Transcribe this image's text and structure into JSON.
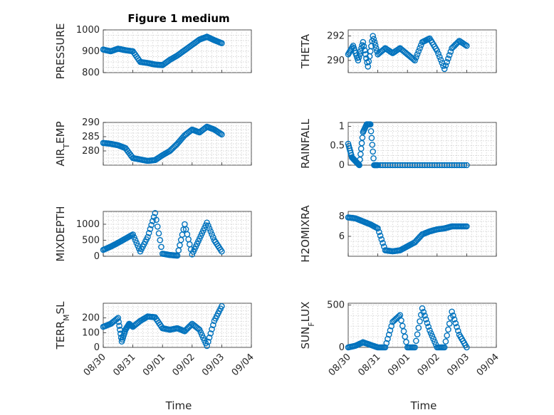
{
  "figure": {
    "title": "Figure 1 medium",
    "xlabel": "Time",
    "x_tick_labels": [
      "08/30",
      "08/31",
      "09/01",
      "09/02",
      "09/03",
      "09/04"
    ],
    "marker_color": "#0072bd"
  },
  "chart_data": [
    {
      "type": "scatter",
      "ylabel": "PRESSURE",
      "ylim": [
        800,
        1000
      ],
      "yticks": [
        800,
        900,
        1000
      ],
      "xlim": [
        "2021-08-30",
        "2021-09-04"
      ],
      "grid": true,
      "x": [
        "08/30 00:00",
        "08/30 06:00",
        "08/30 12:00",
        "08/30 18:00",
        "08/31 00:00",
        "08/31 06:00",
        "08/31 12:00",
        "08/31 18:00",
        "09/01 00:00",
        "09/01 06:00",
        "09/01 12:00",
        "09/01 18:00",
        "09/02 00:00",
        "09/02 06:00",
        "09/02 12:00",
        "09/02 18:00",
        "09/03 00:00"
      ],
      "y": [
        908,
        900,
        912,
        905,
        900,
        850,
        845,
        838,
        835,
        860,
        880,
        905,
        930,
        955,
        968,
        952,
        938
      ]
    },
    {
      "type": "scatter",
      "ylabel": "THETA",
      "ylim": [
        289,
        292.5
      ],
      "yticks": [
        290,
        292
      ],
      "xlim": [
        "2021-08-30",
        "2021-09-04"
      ],
      "grid": true,
      "x": [
        "08/30 00:00",
        "08/30 04:00",
        "08/30 08:00",
        "08/30 12:00",
        "08/30 16:00",
        "08/30 20:00",
        "08/31 00:00",
        "08/31 06:00",
        "08/31 12:00",
        "08/31 18:00",
        "09/01 00:00",
        "09/01 06:00",
        "09/01 12:00",
        "09/01 18:00",
        "09/02 00:00",
        "09/02 06:00",
        "09/02 12:00",
        "09/02 18:00",
        "09/03 00:00"
      ],
      "y": [
        290.5,
        291.2,
        290.0,
        291.5,
        289.5,
        292.0,
        290.5,
        291.0,
        290.6,
        291.0,
        290.5,
        290.0,
        291.5,
        291.8,
        290.8,
        289.3,
        291.0,
        291.6,
        291.2
      ]
    },
    {
      "type": "scatter",
      "ylabel": "AIR_TEMP",
      "ylim": [
        275,
        290
      ],
      "yticks": [
        280,
        285,
        290
      ],
      "xlim": [
        "2021-08-30",
        "2021-09-04"
      ],
      "grid": true,
      "x": [
        "08/30 00:00",
        "08/30 06:00",
        "08/30 12:00",
        "08/30 18:00",
        "08/31 00:00",
        "08/31 06:00",
        "08/31 12:00",
        "08/31 18:00",
        "09/01 00:00",
        "09/01 06:00",
        "09/01 12:00",
        "09/01 18:00",
        "09/02 00:00",
        "09/02 06:00",
        "09/02 12:00",
        "09/02 18:00",
        "09/03 00:00"
      ],
      "y": [
        282.8,
        282.5,
        282.0,
        281.0,
        277.5,
        277.0,
        276.5,
        276.8,
        278.5,
        280.0,
        282.5,
        285.5,
        287.5,
        286.5,
        288.5,
        287.5,
        285.8
      ]
    },
    {
      "type": "scatter",
      "ylabel": "RAINFALL",
      "ylim": [
        0,
        1.1
      ],
      "yticks": [
        0,
        0.5,
        1
      ],
      "xlim": [
        "2021-08-30",
        "2021-09-04"
      ],
      "grid": true,
      "x": [
        "08/30 00:00",
        "08/30 03:00",
        "08/30 06:00",
        "08/30 09:00",
        "08/30 12:00",
        "08/30 15:00",
        "08/30 18:00",
        "08/30 21:00",
        "08/31 00:00",
        "08/31 12:00",
        "09/01 00:00",
        "09/01 12:00",
        "09/02 00:00",
        "09/02 12:00",
        "09/03 00:00"
      ],
      "y": [
        0.55,
        0.2,
        0.1,
        0.0,
        0.85,
        1.05,
        1.05,
        0.0,
        0,
        0,
        0,
        0,
        0,
        0,
        0
      ]
    },
    {
      "type": "scatter",
      "ylabel": "MIXDEPTH",
      "ylim": [
        0,
        1400
      ],
      "yticks": [
        0,
        500,
        1000
      ],
      "xlim": [
        "2021-08-30",
        "2021-09-04"
      ],
      "grid": true,
      "x": [
        "08/30 00:00",
        "08/30 06:00",
        "08/30 12:00",
        "08/30 18:00",
        "08/31 00:00",
        "08/31 06:00",
        "08/31 12:00",
        "08/31 18:00",
        "09/01 00:00",
        "09/01 06:00",
        "09/01 12:00",
        "09/01 18:00",
        "09/02 00:00",
        "09/02 06:00",
        "09/02 12:00",
        "09/02 18:00",
        "09/03 00:00"
      ],
      "y": [
        200,
        300,
        420,
        550,
        680,
        150,
        600,
        1350,
        80,
        40,
        20,
        1000,
        60,
        550,
        1050,
        500,
        150
      ]
    },
    {
      "type": "scatter",
      "ylabel": "H2OMIXRA",
      "ylim": [
        4,
        8.5
      ],
      "yticks": [
        6,
        8
      ],
      "xlim": [
        "2021-08-30",
        "2021-09-04"
      ],
      "grid": true,
      "x": [
        "08/30 00:00",
        "08/30 06:00",
        "08/30 12:00",
        "08/30 18:00",
        "08/31 00:00",
        "08/31 06:00",
        "08/31 12:00",
        "08/31 18:00",
        "09/01 00:00",
        "09/01 06:00",
        "09/01 12:00",
        "09/01 18:00",
        "09/02 00:00",
        "09/02 06:00",
        "09/02 12:00",
        "09/02 18:00",
        "09/03 00:00"
      ],
      "y": [
        7.9,
        7.8,
        7.5,
        7.2,
        6.8,
        4.6,
        4.5,
        4.6,
        5.0,
        5.4,
        6.2,
        6.5,
        6.7,
        6.8,
        7.0,
        7.0,
        7.0
      ]
    },
    {
      "type": "scatter",
      "ylabel": "TERR_MSL",
      "ylim": [
        0,
        300
      ],
      "yticks": [
        0,
        100,
        200
      ],
      "xlim": [
        "2021-08-30",
        "2021-09-04"
      ],
      "grid": true,
      "x": [
        "08/30 00:00",
        "08/30 06:00",
        "08/30 12:00",
        "08/30 15:00",
        "08/30 18:00",
        "08/30 21:00",
        "08/31 00:00",
        "08/31 06:00",
        "08/31 12:00",
        "08/31 18:00",
        "09/01 00:00",
        "09/01 06:00",
        "09/01 12:00",
        "09/01 18:00",
        "09/02 00:00",
        "09/02 06:00",
        "09/02 12:00",
        "09/02 18:00",
        "09/03 00:00"
      ],
      "y": [
        140,
        160,
        200,
        40,
        120,
        160,
        140,
        180,
        210,
        205,
        130,
        120,
        130,
        110,
        160,
        120,
        10,
        180,
        280
      ]
    },
    {
      "type": "scatter",
      "ylabel": "SUN_FLUX",
      "ylim": [
        0,
        520
      ],
      "yticks": [
        0,
        500
      ],
      "xlim": [
        "2021-08-30",
        "2021-09-04"
      ],
      "grid": true,
      "x": [
        "08/30 00:00",
        "08/30 06:00",
        "08/30 12:00",
        "08/30 18:00",
        "08/31 00:00",
        "08/31 06:00",
        "08/31 12:00",
        "08/31 18:00",
        "09/01 00:00",
        "09/01 06:00",
        "09/01 12:00",
        "09/01 18:00",
        "09/02 00:00",
        "09/02 06:00",
        "09/02 12:00",
        "09/02 18:00",
        "09/03 00:00"
      ],
      "y": [
        0,
        20,
        60,
        30,
        0,
        0,
        300,
        380,
        0,
        0,
        460,
        200,
        0,
        0,
        420,
        150,
        0
      ]
    }
  ]
}
